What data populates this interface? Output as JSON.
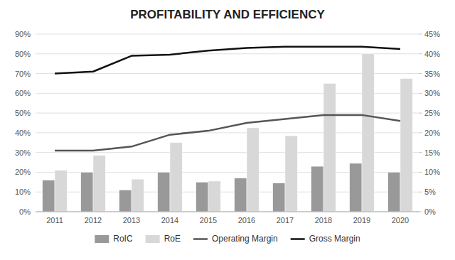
{
  "chart_data": {
    "type": "bar",
    "title": "PROFITABILITY AND EFFICIENCY",
    "categories": [
      "2011",
      "2012",
      "2013",
      "2014",
      "2015",
      "2016",
      "2017",
      "2018",
      "2019",
      "2020"
    ],
    "series": [
      {
        "name": "RoIC",
        "type": "bar",
        "color": "#999999",
        "values": [
          0.16,
          0.2,
          0.11,
          0.2,
          0.15,
          0.17,
          0.145,
          0.23,
          0.245,
          0.2
        ]
      },
      {
        "name": "RoE",
        "type": "bar",
        "color": "#d8d8d8",
        "values": [
          0.21,
          0.285,
          0.165,
          0.35,
          0.155,
          0.425,
          0.385,
          0.65,
          0.8,
          0.675
        ]
      },
      {
        "name": "Operating Margin",
        "type": "line",
        "axis": "y2",
        "color": "#555555",
        "values": [
          0.155,
          0.155,
          0.165,
          0.195,
          0.205,
          0.225,
          0.235,
          0.245,
          0.245,
          0.23
        ]
      },
      {
        "name": "Gross Margin",
        "type": "line",
        "axis": "y2",
        "color": "#111111",
        "values": [
          0.35,
          0.355,
          0.395,
          0.398,
          0.408,
          0.415,
          0.418,
          0.418,
          0.418,
          0.412
        ]
      }
    ],
    "ylim": [
      0,
      0.9
    ],
    "yticks": [
      {
        "value": 0,
        "label": "0%"
      },
      {
        "value": 0.1,
        "label": "10%"
      },
      {
        "value": 0.2,
        "label": "20%"
      },
      {
        "value": 0.3,
        "label": "30%"
      },
      {
        "value": 0.4,
        "label": "40%"
      },
      {
        "value": 0.5,
        "label": "50%"
      },
      {
        "value": 0.6,
        "label": "60%"
      },
      {
        "value": 0.7,
        "label": "70%"
      },
      {
        "value": 0.8,
        "label": "80%"
      },
      {
        "value": 0.9,
        "label": "90%"
      }
    ],
    "y2lim": [
      0,
      0.45
    ],
    "y2ticks": [
      {
        "value": 0,
        "label": "0%"
      },
      {
        "value": 0.05,
        "label": "5%"
      },
      {
        "value": 0.1,
        "label": "10%"
      },
      {
        "value": 0.15,
        "label": "15%"
      },
      {
        "value": 0.2,
        "label": "20%"
      },
      {
        "value": 0.25,
        "label": "25%"
      },
      {
        "value": 0.3,
        "label": "30%"
      },
      {
        "value": 0.35,
        "label": "35%"
      },
      {
        "value": 0.4,
        "label": "40%"
      },
      {
        "value": 0.45,
        "label": "45%"
      }
    ],
    "grid": true,
    "legend": "bottom"
  }
}
